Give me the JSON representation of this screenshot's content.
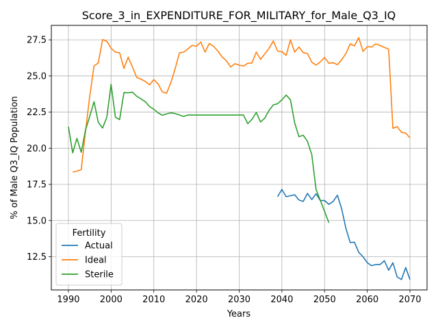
{
  "chart_data": {
    "type": "line",
    "title": "Score_3_in_EXPENDITURE_FOR_MILITARY_for_Male_Q3_IQ",
    "xlabel": "Years",
    "ylabel": "% of Male Q3_IQ Population",
    "xlim": [
      1986,
      2074
    ],
    "ylim": [
      10.2,
      28.5
    ],
    "xticks": [
      1990,
      2000,
      2010,
      2020,
      2030,
      2040,
      2050,
      2060,
      2070
    ],
    "yticks": [
      12.5,
      15.0,
      17.5,
      20.0,
      22.5,
      25.0,
      27.5
    ],
    "ytick_labels": [
      "12.5",
      "15.0",
      "17.5",
      "20.0",
      "22.5",
      "25.0",
      "27.5"
    ],
    "grid": true,
    "legend": {
      "title": "Fertility",
      "placement": "bottom-left"
    },
    "series": [
      {
        "name": "Actual",
        "color": "#1f77b4",
        "x": [
          2039,
          2040,
          2041,
          2042,
          2043,
          2044,
          2045,
          2046,
          2047,
          2048,
          2049,
          2050,
          2051,
          2052,
          2053,
          2054,
          2055,
          2056,
          2057,
          2058,
          2059,
          2060,
          2061,
          2062,
          2063,
          2064,
          2065,
          2066,
          2067,
          2068,
          2069,
          2070
        ],
        "y": [
          16.65,
          17.15,
          16.65,
          16.72,
          16.78,
          16.42,
          16.32,
          16.88,
          16.45,
          16.85,
          16.38,
          16.38,
          16.12,
          16.32,
          16.75,
          15.82,
          14.45,
          13.48,
          13.5,
          12.8,
          12.5,
          12.08,
          11.88,
          11.96,
          11.96,
          12.22,
          11.56,
          12.08,
          11.1,
          10.92,
          11.75,
          10.92
        ]
      },
      {
        "name": "Ideal",
        "color": "#ff7f0e",
        "x": [
          1991,
          1992,
          1993,
          1994,
          1995,
          1996,
          1997,
          1998,
          1999,
          2000,
          2001,
          2002,
          2003,
          2004,
          2005,
          2006,
          2007,
          2008,
          2009,
          2010,
          2011,
          2012,
          2013,
          2014,
          2015,
          2016,
          2017,
          2018,
          2019,
          2020,
          2021,
          2022,
          2023,
          2024,
          2025,
          2026,
          2027,
          2028,
          2029,
          2030,
          2031,
          2032,
          2033,
          2034,
          2035,
          2036,
          2037,
          2038,
          2039,
          2040,
          2041,
          2042,
          2043,
          2044,
          2045,
          2046,
          2047,
          2048,
          2049,
          2050,
          2051,
          2052,
          2053,
          2054,
          2055,
          2056,
          2057,
          2058,
          2059,
          2060,
          2061,
          2062,
          2063,
          2064,
          2065,
          2066,
          2067,
          2068,
          2069,
          2070
        ],
        "y": [
          18.35,
          18.42,
          18.52,
          21.15,
          23.6,
          25.7,
          25.9,
          27.52,
          27.4,
          26.92,
          26.65,
          26.6,
          25.52,
          26.3,
          25.62,
          24.9,
          24.78,
          24.62,
          24.38,
          24.75,
          24.45,
          23.9,
          23.8,
          24.55,
          25.5,
          26.6,
          26.65,
          26.88,
          27.12,
          27.05,
          27.35,
          26.65,
          27.25,
          27.05,
          26.72,
          26.32,
          26.05,
          25.62,
          25.85,
          25.75,
          25.68,
          25.88,
          25.9,
          26.65,
          26.15,
          26.52,
          26.92,
          27.42,
          26.72,
          26.68,
          26.42,
          27.5,
          26.65,
          27.0,
          26.62,
          26.55,
          25.95,
          25.75,
          25.98,
          26.28,
          25.88,
          25.92,
          25.78,
          26.12,
          26.55,
          27.22,
          27.08,
          27.65,
          26.7,
          27.02,
          27.0,
          27.22,
          27.1,
          26.98,
          26.85,
          21.38,
          21.5,
          21.1,
          21.05,
          20.72
        ]
      },
      {
        "name": "Sterile",
        "color": "#2ca02c",
        "x": [
          1990,
          1991,
          1992,
          1993,
          1994,
          1995,
          1996,
          1997,
          1998,
          1999,
          2000,
          2001,
          2002,
          2003,
          2004,
          2005,
          2006,
          2007,
          2008,
          2009,
          2010,
          2011,
          2012,
          2013,
          2014,
          2015,
          2016,
          2017,
          2018,
          2019,
          2020,
          2021,
          2022,
          2023,
          2024,
          2025,
          2026,
          2027,
          2028,
          2029,
          2030,
          2031,
          2032,
          2033,
          2034,
          2035,
          2036,
          2037,
          2038,
          2039,
          2040,
          2041,
          2042,
          2043,
          2044,
          2045,
          2046,
          2047,
          2048,
          2049,
          2050,
          2051
        ],
        "y": [
          21.5,
          19.68,
          20.68,
          19.72,
          21.25,
          22.2,
          23.22,
          21.8,
          21.4,
          22.15,
          24.42,
          22.15,
          21.98,
          23.85,
          23.83,
          23.88,
          23.6,
          23.42,
          23.22,
          22.88,
          22.7,
          22.45,
          22.28,
          22.38,
          22.45,
          22.4,
          22.3,
          22.2,
          22.3,
          22.3,
          22.3,
          22.3,
          22.3,
          22.3,
          22.3,
          22.3,
          22.3,
          22.3,
          22.3,
          22.3,
          22.3,
          22.3,
          21.7,
          22.0,
          22.48,
          21.82,
          22.08,
          22.62,
          23.0,
          23.08,
          23.35,
          23.68,
          23.35,
          21.75,
          20.8,
          20.9,
          20.48,
          19.55,
          17.15,
          16.4,
          15.62,
          14.85
        ]
      }
    ]
  }
}
